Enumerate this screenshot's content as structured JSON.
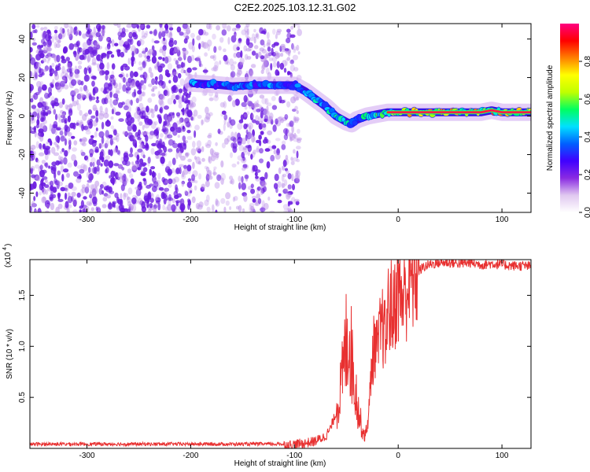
{
  "title": "C2E2.2025.103.12.31.G02",
  "chart_data": [
    {
      "type": "heatmap",
      "xlabel": "Height of straight line (km)",
      "ylabel": "Frequency (Hz)",
      "xlim": [
        -355,
        128
      ],
      "ylim": [
        -50,
        48
      ],
      "xticks": [
        -300,
        -200,
        -100,
        0,
        100
      ],
      "xticklabels": [
        "-300",
        "-200",
        "-100",
        "0",
        "100"
      ],
      "yticks": [
        40,
        20,
        0,
        -20,
        -40
      ],
      "yticklabels": [
        "40",
        "20",
        "0",
        "-20",
        "-40"
      ],
      "colorbar": {
        "label": "Normalized spectral amplitude",
        "range": [
          0,
          1
        ],
        "ticks": [
          0.0,
          0.2,
          0.4,
          0.6,
          0.8
        ],
        "ticklabels": [
          "0.0",
          "0.2",
          "0.4",
          "0.6",
          "0.8"
        ],
        "colormap": [
          "#ffffff",
          "#e0c8f0",
          "#8a2be2",
          "#4000ff",
          "#0060ff",
          "#00e0ff",
          "#00ff60",
          "#c0ff00",
          "#ffff00",
          "#ff8000",
          "#ff0000",
          "#ff0080"
        ]
      },
      "ridge": {
        "x": [
          -198,
          -180,
          -160,
          -140,
          -120,
          -100,
          -90,
          -80,
          -70,
          -60,
          -50,
          -45,
          -40,
          -30,
          -20,
          -10,
          0,
          20,
          40,
          60,
          80,
          90,
          100,
          110,
          128
        ],
        "y": [
          17,
          16.5,
          15.5,
          16,
          16,
          16,
          13,
          9,
          5,
          0,
          -3,
          -4,
          -2,
          0,
          1,
          2,
          2,
          2,
          2,
          2,
          2,
          3,
          2,
          2,
          2
        ],
        "amplitude": [
          0.45,
          0.45,
          0.4,
          0.45,
          0.45,
          0.4,
          0.45,
          0.5,
          0.55,
          0.6,
          0.65,
          0.55,
          0.5,
          0.6,
          0.65,
          0.7,
          0.8,
          0.85,
          0.85,
          0.85,
          0.85,
          0.9,
          0.85,
          0.85,
          0.8
        ]
      }
    },
    {
      "type": "line",
      "xlabel": "Height of straight line (km)",
      "ylabel": "SNR (10 * v/v)",
      "scale_label": "(x10",
      "scale_exp": "4",
      "xlim": [
        -355,
        128
      ],
      "ylim": [
        0,
        18500
      ],
      "xticks": [
        -300,
        -200,
        -100,
        0,
        100
      ],
      "xticklabels": [
        "-300",
        "-200",
        "-100",
        "0",
        "100"
      ],
      "yticks": [
        5000,
        10000,
        15000
      ],
      "yticklabels": [
        "0.5",
        "1.0",
        "1.5"
      ],
      "color": "#e83030",
      "series": [
        {
          "x": [
            -355,
            -300,
            -250,
            -200,
            -150,
            -110,
            -100,
            -90,
            -80,
            -70,
            -65,
            -60,
            -55,
            -52,
            -50,
            -48,
            -45,
            -42,
            -40,
            -38,
            -35,
            -32,
            -30,
            -28,
            -25,
            -22,
            -20,
            -17,
            -15,
            -12,
            -10,
            -7,
            -5,
            -3,
            0,
            3,
            5,
            8,
            10,
            13,
            15,
            18,
            20,
            25,
            30,
            35,
            40,
            50,
            60,
            70,
            80,
            90,
            100,
            110,
            120,
            128
          ],
          "y": [
            300,
            300,
            300,
            300,
            300,
            300,
            400,
            500,
            700,
            1200,
            2000,
            3500,
            6000,
            8500,
            10500,
            11500,
            9000,
            6500,
            5000,
            3500,
            2000,
            1200,
            2000,
            4000,
            9000,
            10500,
            9500,
            11500,
            12000,
            10500,
            13500,
            14000,
            13000,
            14500,
            15500,
            15000,
            14500,
            15800,
            16000,
            16500,
            17000,
            17200,
            17400,
            17800,
            18000,
            18100,
            18200,
            18200,
            18100,
            18200,
            18000,
            18100,
            18000,
            17900,
            17900,
            17800
          ]
        }
      ]
    }
  ]
}
